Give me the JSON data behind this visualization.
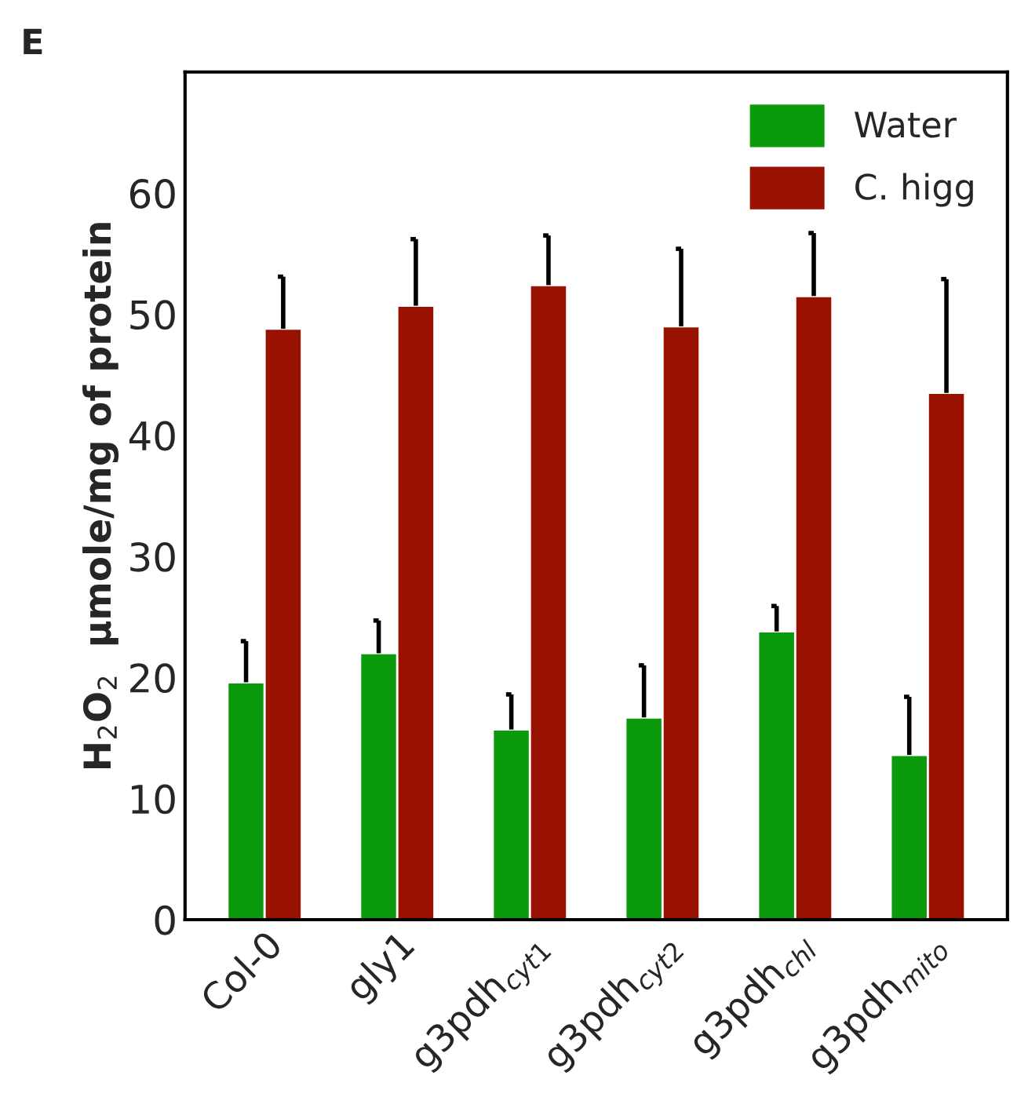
{
  "chart_data": {
    "type": "bar",
    "ylabel": "H$_{2}$O$_{2}$  µmole/mg of protein",
    "annotations": [
      "E"
    ],
    "categories": [
      "Col-0",
      "gly1",
      "g3pdh$_{cyt1}$",
      "g3pdh$_{cyt2}$",
      "g3pdh$_{chl}$",
      "g3pdh$_{mito}$"
    ],
    "series": [
      {
        "name": "Water",
        "color": "#0b9a0b",
        "values": [
          19.6,
          22.0,
          15.7,
          16.7,
          23.8,
          13.6
        ],
        "errors": [
          [
            19.6,
            23.0
          ],
          [
            22.0,
            24.7
          ],
          [
            15.7,
            18.6
          ],
          [
            16.7,
            21.0
          ],
          [
            23.8,
            25.9
          ],
          [
            13.6,
            18.4
          ]
        ]
      },
      {
        "name": "C. higg",
        "color": "#991100",
        "values": [
          48.8,
          50.7,
          52.4,
          49.0,
          51.5,
          43.5
        ],
        "errors": [
          [
            48.8,
            53.1
          ],
          [
            50.7,
            56.2
          ],
          [
            52.4,
            56.5
          ],
          [
            49.0,
            55.4
          ],
          [
            51.5,
            56.7
          ],
          [
            43.5,
            52.9
          ]
        ]
      }
    ],
    "ylim": [
      0,
      70
    ],
    "yticks": [
      0,
      10,
      20,
      30,
      40,
      50,
      60
    ],
    "grid": false,
    "legend": "top right"
  }
}
